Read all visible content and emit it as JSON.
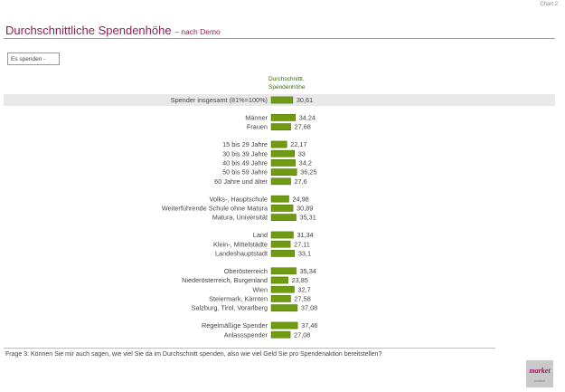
{
  "header": {
    "chart_number": "Chart 2",
    "title": "Durchschnittliche Spendenhöhe",
    "subtitle": "– nach Demo"
  },
  "filter_label": "Es spenden -",
  "column_header": [
    "Durchschnittl.",
    "Spendenhöhe"
  ],
  "footer": {
    "question": "Frage 3:     Können Sie mir auch sagen, wie viel Sie da im Durchschnitt spenden, also wie viel Geld Sie pro Spendenaktion bereitstellen?"
  },
  "logo": {
    "text": "market",
    "subtext": "institut"
  },
  "colors": {
    "bar": "#6f9a12",
    "bar_border": "#4a6e08",
    "title": "#8f1d5b",
    "highlight": "#e9e9e9"
  },
  "chart_data": {
    "type": "bar",
    "orientation": "horizontal",
    "xlim": [
      0,
      100
    ],
    "groups": [
      {
        "categories": [
          "Spender insgesamt (81%=100%)"
        ],
        "values": [
          30.61
        ],
        "labels": [
          "30,61"
        ]
      },
      {
        "categories": [
          "Männer",
          "Frauen"
        ],
        "values": [
          34.24,
          27.68
        ],
        "labels": [
          "34,24",
          "27,68"
        ]
      },
      {
        "categories": [
          "15 bis 29 Jahre",
          "30 bis 39 Jahre",
          "40 bis 49 Jahre",
          "50 bis 59 Jahre",
          "60 Jahre und älter"
        ],
        "values": [
          22.17,
          33,
          34.2,
          36.25,
          27.6
        ],
        "labels": [
          "22,17",
          "33",
          "34,2",
          "36,25",
          "27,6"
        ]
      },
      {
        "categories": [
          "Volks-, Hauptschule",
          "Weiterführende Schule ohne Matura",
          "Matura, Universität"
        ],
        "values": [
          24.98,
          30.89,
          35.31
        ],
        "labels": [
          "24,98",
          "30,89",
          "35,31"
        ]
      },
      {
        "categories": [
          "Land",
          "Klein-, Mittelstädte",
          "Landeshauptstadt"
        ],
        "values": [
          31.34,
          27.11,
          33.1
        ],
        "labels": [
          "31,34",
          "27,11",
          "33,1"
        ]
      },
      {
        "categories": [
          "Oberösterreich",
          "Niederösterreich, Burgenland",
          "Wien",
          "Steiermark, Kärnten",
          "Salzburg, Tirol, Vorarlberg"
        ],
        "values": [
          35.34,
          23.85,
          32.7,
          27.58,
          37.08
        ],
        "labels": [
          "35,34",
          "23,85",
          "32,7",
          "27,58",
          "37,08"
        ]
      },
      {
        "categories": [
          "Regelmäßige Spender",
          "Anlassspender"
        ],
        "values": [
          37.46,
          27.08
        ],
        "labels": [
          "37,46",
          "27,08"
        ]
      }
    ]
  }
}
